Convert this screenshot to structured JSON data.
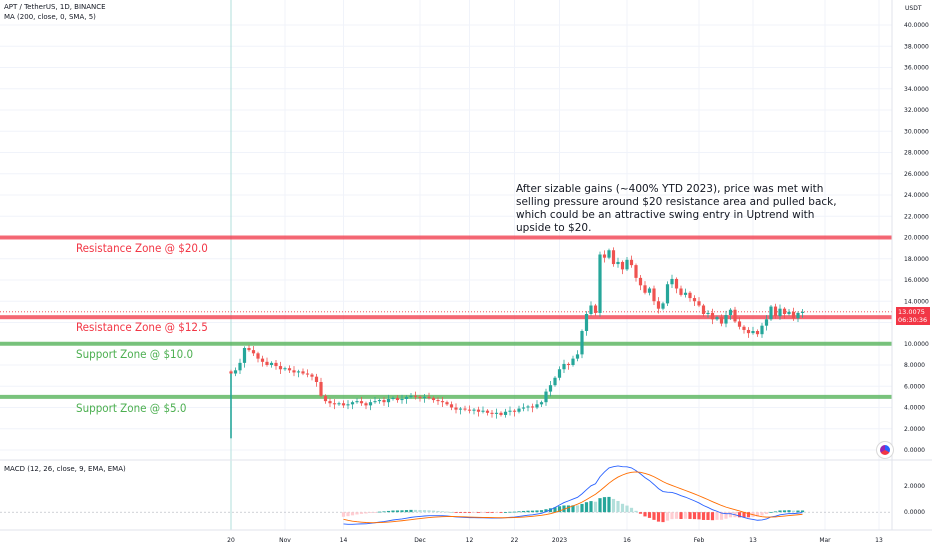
{
  "header": {
    "symbol_line": "APT / TetherUS, 1D, BINANCE",
    "indicator_line": "MA (200, close, 0, SMA, 5)",
    "currency": "USDT"
  },
  "macd_header": "MACD (12, 26, close, 9, EMA, EMA)",
  "annotation": "After sizable gains (~400% YTD 2023), price was met with selling pressure around $20 resistance area and pulled back, which could be an attractive swing entry in Uptrend with upside to $20.",
  "zones": [
    {
      "label": "Resistance Zone @ $20.0",
      "price": 20.0,
      "color": "#f23645"
    },
    {
      "label": "Resistance Zone @ $12.5",
      "price": 12.5,
      "color": "#f23645"
    },
    {
      "label": "Support Zone @ $10.0",
      "price": 10.0,
      "color": "#4caf50"
    },
    {
      "label": "Support Zone @ $5.0",
      "price": 5.0,
      "color": "#4caf50"
    }
  ],
  "price_tag": {
    "price": "13.0075",
    "countdown": "06:30:36",
    "value": 13.0075
  },
  "colors": {
    "up": "#26a69a",
    "down": "#ef5350",
    "macd": "#2962ff",
    "signal": "#ff6d00",
    "resistance": "#f23645",
    "support": "#4caf50"
  },
  "chart_data": {
    "type": "candlestick",
    "title": "APT / TetherUS, 1D, BINANCE",
    "ylabel": "USDT",
    "ylim": [
      0,
      42
    ],
    "y_ticks": [
      "0.0000",
      "2.0000",
      "4.0000",
      "6.0000",
      "8.0000",
      "10.0000",
      "12.0000",
      "14.0000",
      "16.0000",
      "18.0000",
      "20.0000",
      "22.0000",
      "24.0000",
      "26.0000",
      "28.0000",
      "30.0000",
      "32.0000",
      "34.0000",
      "36.0000",
      "38.0000",
      "40.0000"
    ],
    "x_ticks": [
      {
        "label": "20",
        "day": 0
      },
      {
        "label": "Nov",
        "day": 12
      },
      {
        "label": "14",
        "day": 25
      },
      {
        "label": "Dec",
        "day": 42
      },
      {
        "label": "12",
        "day": 53
      },
      {
        "label": "22",
        "day": 63
      },
      {
        "label": "2023",
        "day": 73
      },
      {
        "label": "16",
        "day": 88
      },
      {
        "label": "Feb",
        "day": 104
      },
      {
        "label": "13",
        "day": 116
      },
      {
        "label": "Mar",
        "day": 132
      },
      {
        "label": "13",
        "day": 144
      }
    ],
    "series_close": [
      7.2,
      7.5,
      8.2,
      9.6,
      9.4,
      9.1,
      8.6,
      8.3,
      8.0,
      8.2,
      7.9,
      7.6,
      7.7,
      7.5,
      7.3,
      7.4,
      7.2,
      7.1,
      6.9,
      6.4,
      5.1,
      4.6,
      4.4,
      4.3,
      4.4,
      4.2,
      4.3,
      4.5,
      4.6,
      4.4,
      4.2,
      4.5,
      4.6,
      4.7,
      4.5,
      4.8,
      4.9,
      4.7,
      4.8,
      5.0,
      5.1,
      5.0,
      4.9,
      5.0,
      4.9,
      4.7,
      4.6,
      4.5,
      4.3,
      4.0,
      3.8,
      3.9,
      3.8,
      3.7,
      3.8,
      3.6,
      3.7,
      3.5,
      3.4,
      3.5,
      3.3,
      3.6,
      3.7,
      3.6,
      3.9,
      4.0,
      4.1,
      4.0,
      4.3,
      4.5,
      5.5,
      6.1,
      6.8,
      7.6,
      8.1,
      8.0,
      8.6,
      9.0,
      11.2,
      12.8,
      13.6,
      12.9,
      18.4,
      18.1,
      18.8,
      17.5,
      17.7,
      17.0,
      17.9,
      17.4,
      16.2,
      15.5,
      14.8,
      15.2,
      14.0,
      13.3,
      13.8,
      15.6,
      16.1,
      15.2,
      14.6,
      14.8,
      14.3,
      14.0,
      13.6,
      12.8,
      12.9,
      12.3,
      12.5,
      11.9,
      12.7,
      13.2,
      12.1,
      11.6,
      11.3,
      11.0,
      11.2,
      10.9,
      11.7,
      12.3,
      13.5,
      12.6,
      13.3,
      12.8,
      13.0,
      12.4,
      12.9,
      13.0
    ],
    "macd": {
      "ylim": [
        -1.2,
        3.8
      ],
      "y_ticks": [
        "2.0000",
        "0.0000"
      ]
    }
  }
}
